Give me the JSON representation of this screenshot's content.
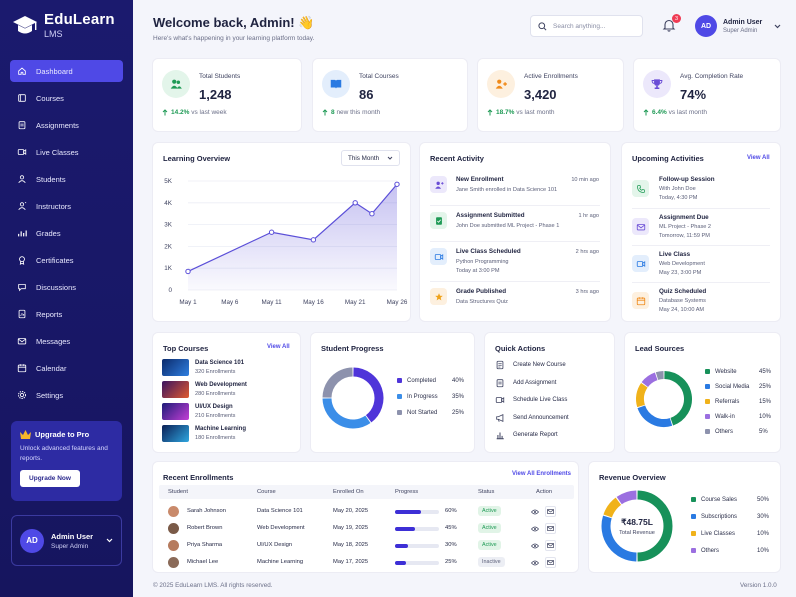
{
  "brand": {
    "name": "EduLearn",
    "sub": "LMS"
  },
  "nav": [
    {
      "label": "Dashboard",
      "icon": "home-icon",
      "active": true
    },
    {
      "label": "Courses",
      "icon": "book-icon"
    },
    {
      "label": "Assignments",
      "icon": "clipboard-icon"
    },
    {
      "label": "Live Classes",
      "icon": "video-icon"
    },
    {
      "label": "Students",
      "icon": "student-icon"
    },
    {
      "label": "Instructors",
      "icon": "instructor-icon"
    },
    {
      "label": "Grades",
      "icon": "grades-icon"
    },
    {
      "label": "Certificates",
      "icon": "certificate-icon"
    },
    {
      "label": "Discussions",
      "icon": "chat-icon"
    },
    {
      "label": "Reports",
      "icon": "report-icon"
    },
    {
      "label": "Messages",
      "icon": "mail-icon"
    },
    {
      "label": "Calendar",
      "icon": "calendar-icon"
    },
    {
      "label": "Settings",
      "icon": "gear-icon"
    }
  ],
  "upgrade": {
    "title": "Upgrade to Pro",
    "text": "Unlock advanced features and reports.",
    "button": "Upgrade Now"
  },
  "user": {
    "initials": "AD",
    "name": "Admin User",
    "role": "Super Admin"
  },
  "header": {
    "title": "Welcome back, Admin! 👋",
    "subtitle": "Here's what's happening in your learning platform today.",
    "search_placeholder": "Search anything...",
    "notifications": "3"
  },
  "stats": [
    {
      "label": "Total Students",
      "value": "1,248",
      "trend": "14.2%",
      "trend_text": "vs last week",
      "color": "#1e9a55",
      "bg": "#e3f5ea",
      "icon": "users-icon"
    },
    {
      "label": "Total Courses",
      "value": "86",
      "trend": "8",
      "trend_text": "new this month",
      "color": "#2a7ae2",
      "bg": "#e3eefc",
      "icon": "book-open-icon"
    },
    {
      "label": "Active Enrollments",
      "value": "3,420",
      "trend": "18.7%",
      "trend_text": "vs last month",
      "color": "#f08a1a",
      "bg": "#fdf0df",
      "icon": "enroll-icon"
    },
    {
      "label": "Avg. Completion Rate",
      "value": "74%",
      "trend": "6.4%",
      "trend_text": "vs last month",
      "color": "#6a4cd6",
      "bg": "#ece8fb",
      "icon": "trophy-icon"
    }
  ],
  "learning": {
    "title": "Learning Overview",
    "filter": "This Month"
  },
  "chart_data": {
    "type": "area",
    "title": "Learning Overview",
    "categories": [
      "May 1",
      "May 6",
      "May 11",
      "May 16",
      "May 21",
      "May 26"
    ],
    "x": [
      "May 1",
      "May 11",
      "May 16",
      "May 21",
      "May 23",
      "May 26"
    ],
    "values": [
      850,
      2650,
      2300,
      4000,
      3500,
      4850
    ],
    "y_ticks": [
      "0",
      "1K",
      "2K",
      "3K",
      "4K",
      "5K"
    ],
    "ylim": [
      0,
      5000
    ],
    "grid": true,
    "color": "#5b4fd8"
  },
  "activity": {
    "title": "Recent Activity",
    "items": [
      {
        "title": "New Enrollment",
        "desc": "Jane Smith enrolled in Data Science 101",
        "time": "10 min ago",
        "bg": "#ece8fb",
        "color": "#6a4cd6",
        "icon": "user-add-icon"
      },
      {
        "title": "Assignment Submitted",
        "desc": "John Doe submitted ML Project - Phase 1",
        "time": "1 hr ago",
        "bg": "#e3f5ea",
        "color": "#1e9a55",
        "icon": "document-check-icon"
      },
      {
        "title": "Live Class Scheduled",
        "desc": "Python Programming",
        "desc2": "Today at 3:00 PM",
        "time": "2 hrs ago",
        "bg": "#e3eefc",
        "color": "#2a7ae2",
        "icon": "video-icon"
      },
      {
        "title": "Grade Published",
        "desc": "Data Structures Quiz",
        "time": "3 hrs ago",
        "bg": "#fdf0df",
        "color": "#f0a21a",
        "icon": "star-icon"
      }
    ]
  },
  "upcoming": {
    "title": "Upcoming Activities",
    "view_all": "View All",
    "items": [
      {
        "title": "Follow-up Session",
        "l1": "With John Doe",
        "l2": "Today, 4:30 PM",
        "bg": "#e3f5ea",
        "color": "#1e9a55",
        "icon": "phone-icon"
      },
      {
        "title": "Assignment Due",
        "l1": "ML Project - Phase 2",
        "l2": "Tomorrow, 11:59 PM",
        "bg": "#ece8fb",
        "color": "#6a4cd6",
        "icon": "mail-icon"
      },
      {
        "title": "Live Class",
        "l1": "Web Development",
        "l2": "May 23, 3:00 PM",
        "bg": "#e3eefc",
        "color": "#2a7ae2",
        "icon": "video-icon"
      },
      {
        "title": "Quiz Scheduled",
        "l1": "Database Systems",
        "l2": "May 24, 10:00 AM",
        "bg": "#fdf0df",
        "color": "#f08a1a",
        "icon": "calendar-icon"
      }
    ]
  },
  "top_courses": {
    "title": "Top Courses",
    "view_all": "View All",
    "items": [
      {
        "name": "Data Science 101",
        "count": "320 Enrollments"
      },
      {
        "name": "Web Development",
        "count": "280 Enrollments"
      },
      {
        "name": "UI/UX Design",
        "count": "210 Enrollments"
      },
      {
        "name": "Machine Learning",
        "count": "180 Enrollments"
      }
    ]
  },
  "progress": {
    "title": "Student Progress",
    "items": [
      {
        "label": "Completed",
        "value": "40%",
        "pct": 40,
        "color": "#4f35d9"
      },
      {
        "label": "In Progress",
        "value": "35%",
        "pct": 35,
        "color": "#3b8ee8"
      },
      {
        "label": "Not Started",
        "value": "25%",
        "pct": 25,
        "color": "#8d92ad"
      }
    ]
  },
  "quick": {
    "title": "Quick Actions",
    "items": [
      {
        "label": "Create New Course",
        "icon": "document-icon"
      },
      {
        "label": "Add Assignment",
        "icon": "clipboard-icon"
      },
      {
        "label": "Schedule Live Class",
        "icon": "video-icon"
      },
      {
        "label": "Send Announcement",
        "icon": "megaphone-icon"
      },
      {
        "label": "Generate Report",
        "icon": "bar-chart-icon"
      }
    ]
  },
  "leads": {
    "title": "Lead Sources",
    "items": [
      {
        "label": "Website",
        "value": "45%",
        "pct": 45,
        "color": "#17915a"
      },
      {
        "label": "Social Media",
        "value": "25%",
        "pct": 25,
        "color": "#2a7ae2"
      },
      {
        "label": "Referrals",
        "value": "15%",
        "pct": 15,
        "color": "#f0b21a"
      },
      {
        "label": "Walk-in",
        "value": "10%",
        "pct": 10,
        "color": "#9b6fe0"
      },
      {
        "label": "Others",
        "value": "5%",
        "pct": 5,
        "color": "#8d92ad"
      }
    ]
  },
  "enrollments": {
    "title": "Recent Enrollments",
    "view_all": "View All Enrollments",
    "columns": [
      "Student",
      "Course",
      "Enrolled On",
      "Progress",
      "Status",
      "Action"
    ],
    "rows": [
      {
        "student": "Sarah Johnson",
        "course": "Data Science 101",
        "date": "May 20, 2025",
        "progress": "60%",
        "pct": 60,
        "status": "Active"
      },
      {
        "student": "Robert Brown",
        "course": "Web Development",
        "date": "May 19, 2025",
        "progress": "45%",
        "pct": 45,
        "status": "Active"
      },
      {
        "student": "Priya Sharma",
        "course": "UI/UX Design",
        "date": "May 18, 2025",
        "progress": "30%",
        "pct": 30,
        "status": "Active"
      },
      {
        "student": "Michael Lee",
        "course": "Machine Learning",
        "date": "May 17, 2025",
        "progress": "25%",
        "pct": 25,
        "status": "Inactive"
      }
    ]
  },
  "revenue": {
    "title": "Revenue Overview",
    "center_value": "₹48.75L",
    "center_label": "Total Revenue",
    "items": [
      {
        "label": "Course Sales",
        "value": "50%",
        "pct": 50,
        "color": "#17915a"
      },
      {
        "label": "Subscriptions",
        "value": "30%",
        "pct": 30,
        "color": "#2a7ae2"
      },
      {
        "label": "Live Classes",
        "value": "10%",
        "pct": 10,
        "color": "#f0b21a"
      },
      {
        "label": "Others",
        "value": "10%",
        "pct": 10,
        "color": "#9b6fe0"
      }
    ]
  },
  "footer": {
    "copyright": "© 2025 EduLearn LMS. All rights reserved.",
    "version": "Version 1.0.0"
  }
}
